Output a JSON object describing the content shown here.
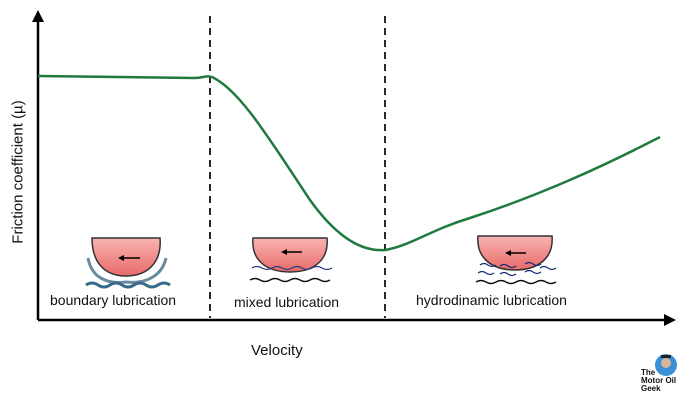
{
  "diagram": {
    "y_axis_label": "Friction coefficient (µ)",
    "x_axis_label": "Velocity",
    "regimes": [
      {
        "label": "boundary lubrication"
      },
      {
        "label": "mixed lubrication"
      },
      {
        "label": "hydrodinamic lubrication"
      }
    ],
    "curve_color": "#1f7a3f",
    "logo": {
      "text_line1": "The",
      "text_line2": "Motor Oil",
      "text_line3": "Geek"
    }
  }
}
